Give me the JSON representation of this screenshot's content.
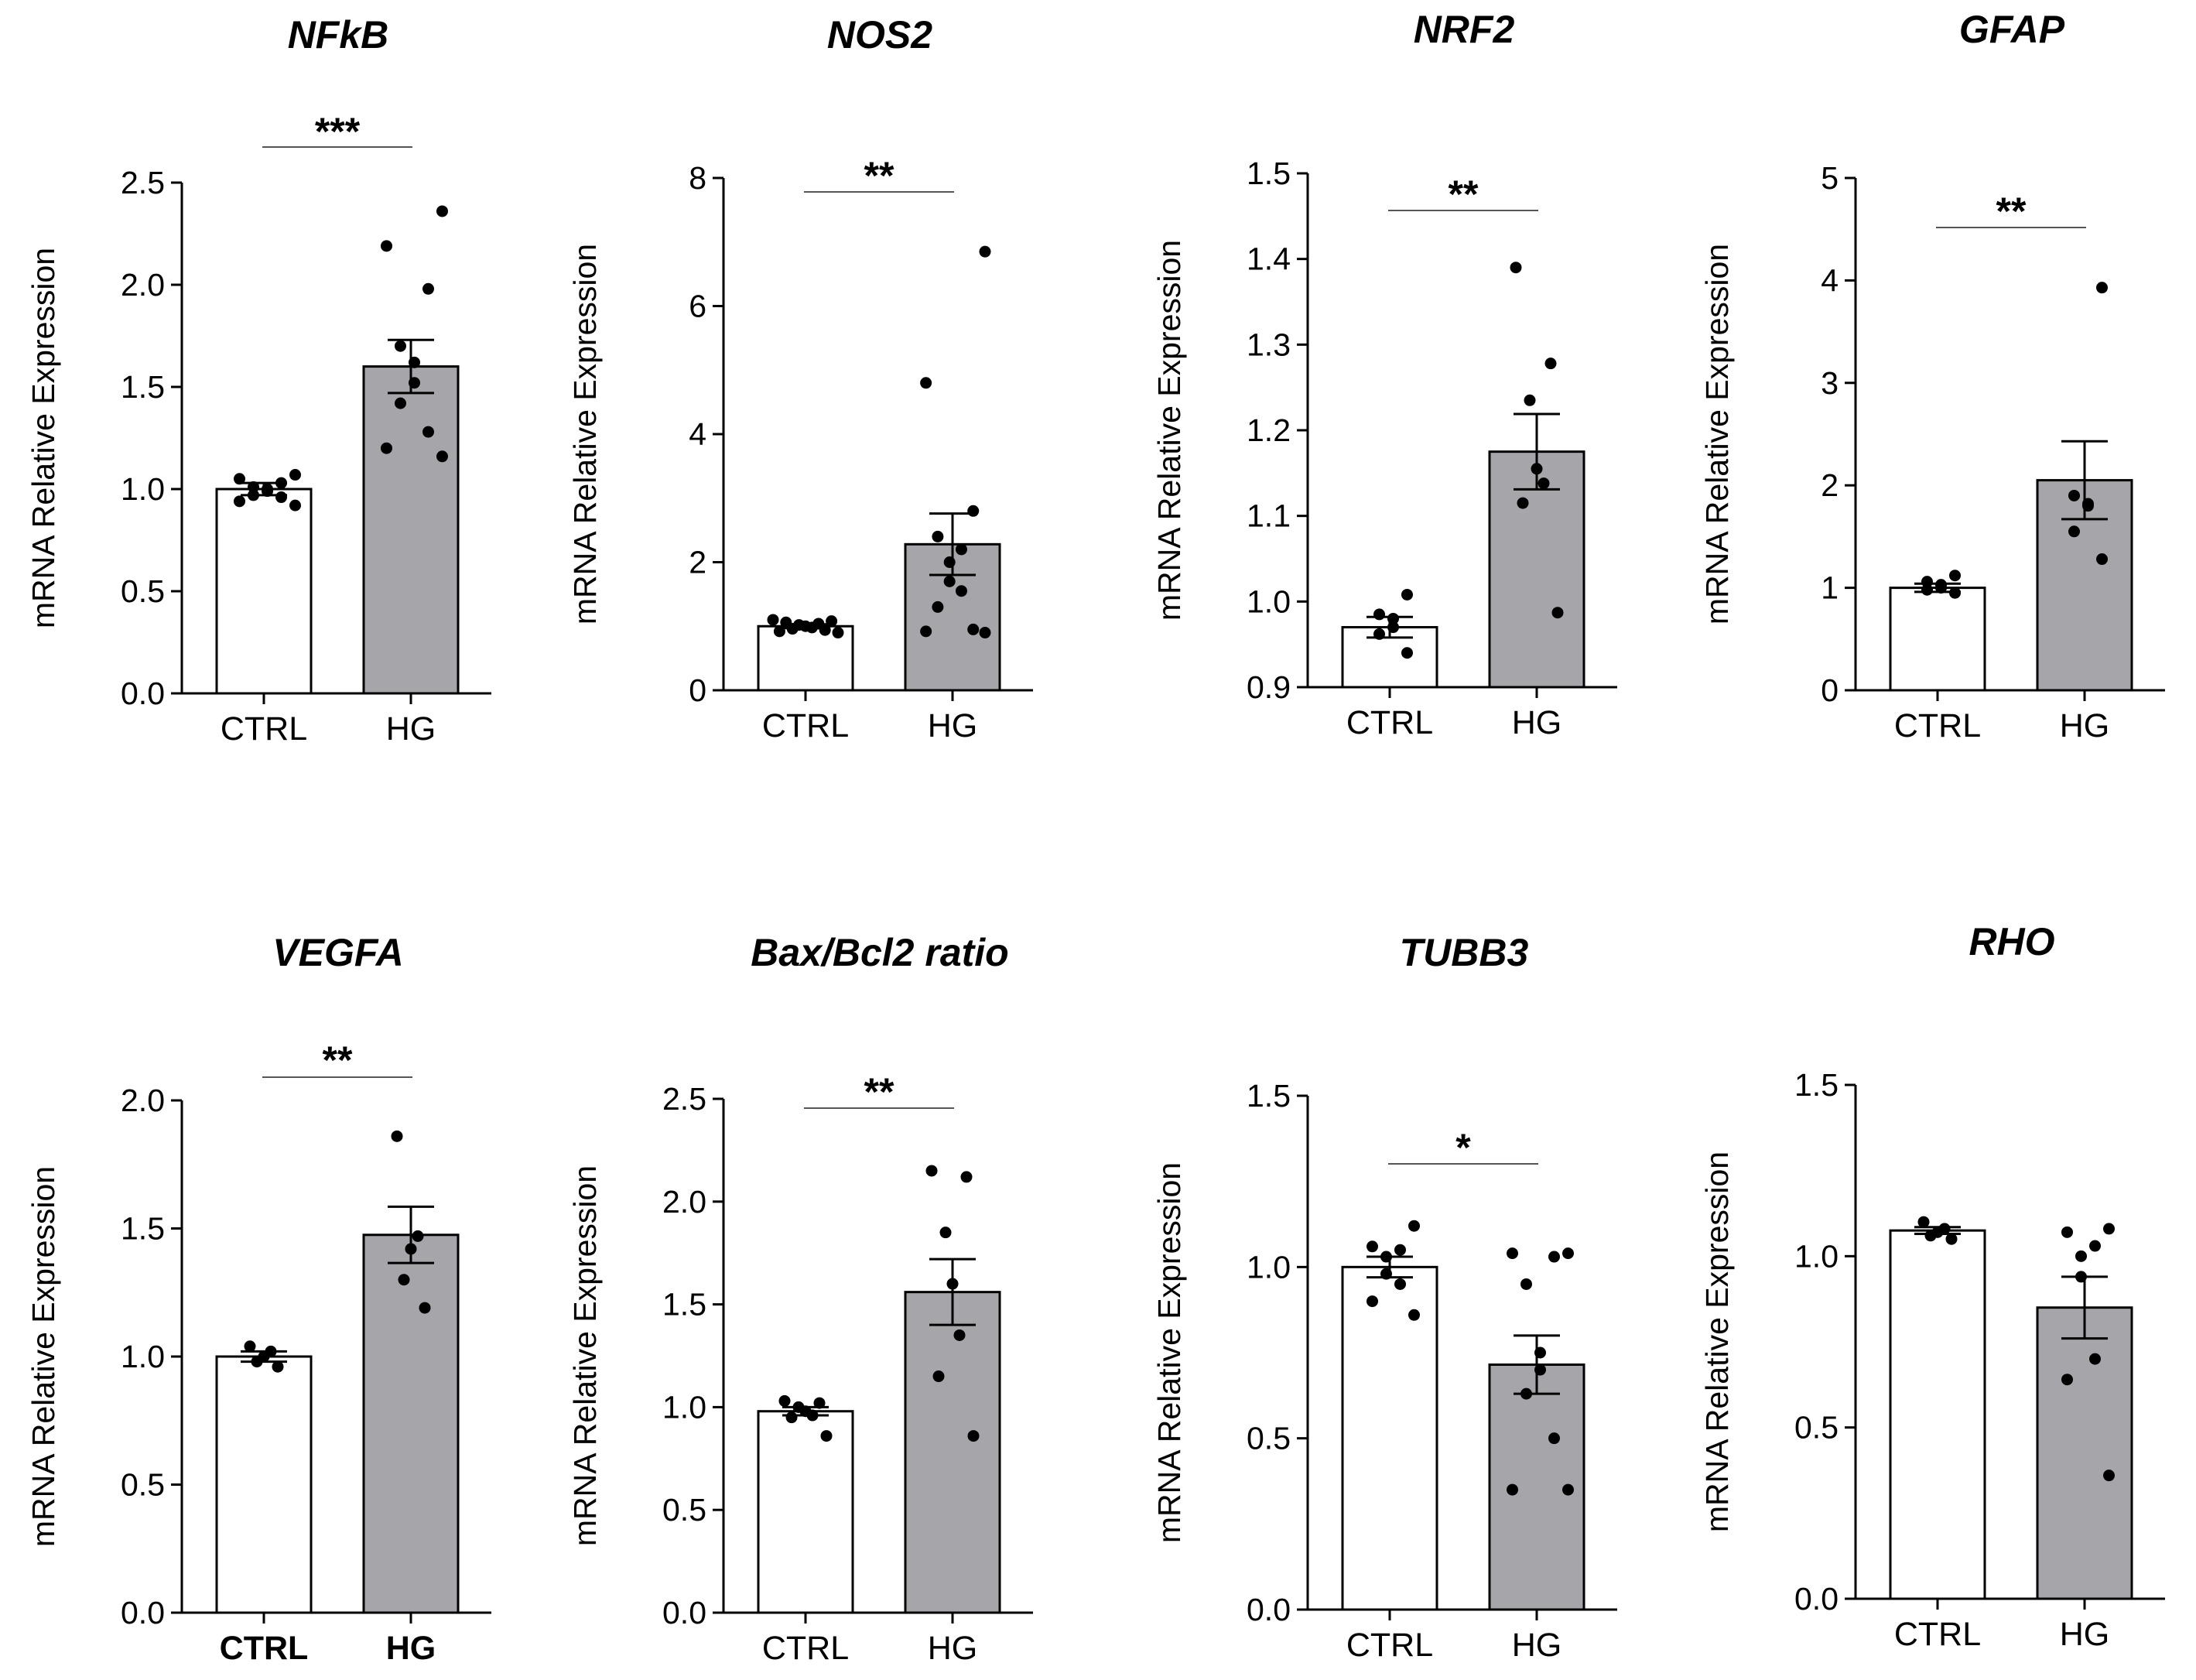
{
  "figure": {
    "ylabel": "mRNA Relative Expression",
    "colors": {
      "ctrl_fill": "#ffffff",
      "hg_fill": "#a6a6aa",
      "stroke": "#000000",
      "sig_line": "#555555"
    }
  },
  "chart_data": [
    {
      "type": "bar",
      "title": "NFkB",
      "xlabel": "",
      "ylabel": "mRNA Relative Expression",
      "ylim": [
        0,
        2.5
      ],
      "yticks": [
        "0.0",
        "0.5",
        "1.0",
        "1.5",
        "2.0",
        "2.5"
      ],
      "categories": [
        "CTRL",
        "HG"
      ],
      "bold_categories": false,
      "values": [
        1.0,
        1.6
      ],
      "sem": [
        0.03,
        0.13
      ],
      "points": [
        [
          0.92,
          0.94,
          0.96,
          0.97,
          0.99,
          1.0,
          1.01,
          1.03,
          1.05,
          1.07
        ],
        [
          1.16,
          1.2,
          1.28,
          1.42,
          1.52,
          1.62,
          1.7,
          1.98,
          2.19,
          2.36
        ]
      ],
      "significance": "***"
    },
    {
      "type": "bar",
      "title": "NOS2",
      "xlabel": "",
      "ylabel": "mRNA Relative Expression",
      "ylim": [
        0,
        8
      ],
      "yticks": [
        "0",
        "2",
        "4",
        "6",
        "8"
      ],
      "categories": [
        "CTRL",
        "HG"
      ],
      "bold_categories": false,
      "values": [
        1.0,
        2.28
      ],
      "sem": [
        0.03,
        0.48
      ],
      "points": [
        [
          0.9,
          0.92,
          0.94,
          0.96,
          0.98,
          1.0,
          1.02,
          1.04,
          1.06,
          1.08,
          1.1
        ],
        [
          0.9,
          0.92,
          0.95,
          1.3,
          1.55,
          1.7,
          2.0,
          2.2,
          2.4,
          2.8,
          4.8,
          6.85
        ]
      ],
      "significance": "**"
    },
    {
      "type": "bar",
      "title": "NRF2",
      "xlabel": "",
      "ylabel": "mRNA Relative Expression",
      "ylim": [
        0.9,
        1.5
      ],
      "yticks": [
        "0.9",
        "1.0",
        "1.1",
        "1.2",
        "1.3",
        "1.4",
        "1.5"
      ],
      "categories": [
        "CTRL",
        "HG"
      ],
      "bold_categories": false,
      "values": [
        0.97,
        1.175
      ],
      "sem": [
        0.012,
        0.044
      ],
      "points": [
        [
          0.94,
          0.962,
          0.97,
          0.98,
          0.985,
          1.008
        ],
        [
          0.987,
          1.115,
          1.138,
          1.155,
          1.235,
          1.278,
          1.39
        ]
      ],
      "significance": "**"
    },
    {
      "type": "bar",
      "title": "GFAP",
      "xlabel": "",
      "ylabel": "mRNA Relative Expression",
      "ylim": [
        0,
        5
      ],
      "yticks": [
        "0",
        "1",
        "2",
        "3",
        "4",
        "5"
      ],
      "categories": [
        "CTRL",
        "HG"
      ],
      "bold_categories": false,
      "values": [
        1.0,
        2.05
      ],
      "sem": [
        0.04,
        0.38
      ],
      "points": [
        [
          0.95,
          0.98,
          1.0,
          1.03,
          1.06,
          1.12
        ],
        [
          1.28,
          1.55,
          1.8,
          1.82,
          1.9,
          3.93
        ]
      ],
      "significance": "**"
    },
    {
      "type": "bar",
      "title": "VEGFA",
      "xlabel": "",
      "ylabel": "mRNA Relative Expression",
      "ylim": [
        0,
        2.0
      ],
      "yticks": [
        "0.0",
        "0.5",
        "1.0",
        "1.5",
        "2.0"
      ],
      "categories": [
        "CTRL",
        "HG"
      ],
      "bold_categories": true,
      "values": [
        1.0,
        1.475
      ],
      "sem": [
        0.02,
        0.11
      ],
      "points": [
        [
          0.96,
          0.98,
          1.0,
          1.02,
          1.04
        ],
        [
          1.19,
          1.3,
          1.42,
          1.47,
          1.86
        ]
      ],
      "significance": "**"
    },
    {
      "type": "bar",
      "title": "Bax/Bcl2 ratio",
      "xlabel": "",
      "ylabel": "mRNA Relative Expression",
      "ylim": [
        0,
        2.5
      ],
      "yticks": [
        "0.0",
        "0.5",
        "1.0",
        "1.5",
        "2.0",
        "2.5"
      ],
      "categories": [
        "CTRL",
        "HG"
      ],
      "bold_categories": false,
      "values": [
        0.98,
        1.56
      ],
      "sem": [
        0.02,
        0.16
      ],
      "points": [
        [
          0.86,
          0.95,
          0.96,
          0.98,
          1.0,
          1.02,
          1.03
        ],
        [
          0.86,
          1.15,
          1.35,
          1.6,
          1.85,
          2.12,
          2.15
        ]
      ],
      "significance": "**"
    },
    {
      "type": "bar",
      "title": "TUBB3",
      "xlabel": "",
      "ylabel": "mRNA Relative Expression",
      "ylim": [
        0,
        1.5
      ],
      "yticks": [
        "0.0",
        "0.5",
        "1.0",
        "1.5"
      ],
      "categories": [
        "CTRL",
        "HG"
      ],
      "bold_categories": false,
      "values": [
        1.0,
        0.715
      ],
      "sem": [
        0.03,
        0.085
      ],
      "points": [
        [
          0.86,
          0.9,
          0.95,
          0.98,
          1.03,
          1.05,
          1.06,
          1.12
        ],
        [
          0.35,
          0.35,
          0.5,
          0.63,
          0.7,
          0.75,
          0.95,
          1.03,
          1.04,
          1.04
        ]
      ],
      "significance": "*"
    },
    {
      "type": "bar",
      "title": "RHO",
      "xlabel": "",
      "ylabel": "mRNA Relative Expression",
      "ylim": [
        0,
        1.5
      ],
      "yticks": [
        "0.0",
        "0.5",
        "1.0",
        "1.5"
      ],
      "categories": [
        "CTRL",
        "HG"
      ],
      "bold_categories": false,
      "values": [
        1.075,
        0.85
      ],
      "sem": [
        0.01,
        0.09
      ],
      "points": [
        [
          1.05,
          1.06,
          1.07,
          1.08,
          1.1
        ],
        [
          0.36,
          0.64,
          0.7,
          0.94,
          1.0,
          1.03,
          1.07,
          1.08
        ]
      ],
      "significance": ""
    }
  ]
}
